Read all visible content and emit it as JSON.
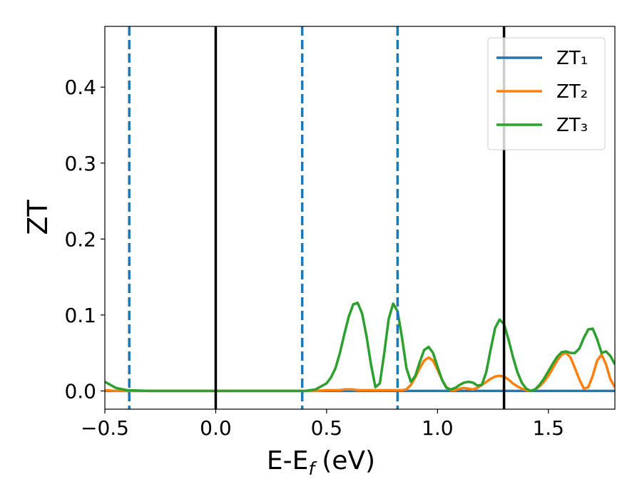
{
  "chart_data": {
    "type": "line",
    "xlabel": {
      "main": "E-E",
      "sub": "f",
      "unit": "(eV)"
    },
    "ylabel": "ZT",
    "x": [
      -0.5,
      -0.45,
      -0.4,
      -0.3,
      -0.2,
      -0.1,
      0,
      0.1,
      0.2,
      0.3,
      0.4,
      0.45,
      0.5,
      0.52,
      0.54,
      0.56,
      0.58,
      0.6,
      0.62,
      0.64,
      0.66,
      0.68,
      0.7,
      0.72,
      0.74,
      0.76,
      0.78,
      0.8,
      0.82,
      0.84,
      0.86,
      0.88,
      0.9,
      0.92,
      0.94,
      0.96,
      0.98,
      1.0,
      1.02,
      1.04,
      1.06,
      1.08,
      1.1,
      1.12,
      1.14,
      1.16,
      1.18,
      1.2,
      1.22,
      1.24,
      1.26,
      1.28,
      1.3,
      1.32,
      1.34,
      1.36,
      1.38,
      1.4,
      1.42,
      1.44,
      1.46,
      1.48,
      1.5,
      1.52,
      1.54,
      1.56,
      1.58,
      1.6,
      1.62,
      1.64,
      1.66,
      1.68,
      1.7,
      1.72,
      1.74,
      1.76,
      1.78,
      1.8
    ],
    "series": [
      {
        "name": "ZT₁",
        "color": "#1f77b4",
        "values": [
          0,
          0,
          0,
          0,
          0,
          0,
          0,
          0,
          0,
          0,
          0,
          0,
          0,
          0,
          0,
          0,
          0,
          0,
          0,
          0,
          0,
          0,
          0,
          0,
          0,
          0,
          0,
          0,
          0,
          0,
          0,
          0,
          0,
          0,
          0,
          0,
          0,
          0,
          0,
          0,
          0,
          0,
          0,
          0,
          0,
          0,
          0,
          0,
          0,
          0,
          0,
          0,
          0,
          0,
          0,
          0,
          0,
          0,
          0,
          0,
          0,
          0,
          0,
          0,
          0,
          0,
          0,
          0,
          0,
          0,
          0,
          0,
          0,
          0,
          0,
          0,
          0,
          0
        ]
      },
      {
        "name": "ZT₂",
        "color": "#ff7f0e",
        "values": [
          0.001,
          0,
          0,
          0,
          0,
          0,
          0,
          0,
          0,
          0,
          0,
          0,
          0.001,
          0.001,
          0.001,
          0.001,
          0.002,
          0.002,
          0.002,
          0.001,
          0.001,
          0.001,
          0.001,
          0.001,
          0.001,
          0.001,
          0.001,
          0.001,
          0.001,
          0.001,
          0.002,
          0.008,
          0.018,
          0.03,
          0.04,
          0.044,
          0.04,
          0.028,
          0.015,
          0.005,
          0.001,
          0.001,
          0.003,
          0.004,
          0.003,
          0.002,
          0.004,
          0.008,
          0.012,
          0.016,
          0.019,
          0.02,
          0.019,
          0.015,
          0.01,
          0.006,
          0.003,
          0.001,
          0,
          0.002,
          0.006,
          0.012,
          0.02,
          0.03,
          0.04,
          0.048,
          0.05,
          0.044,
          0.03,
          0.015,
          0.003,
          0.005,
          0.02,
          0.04,
          0.048,
          0.035,
          0.015,
          0.005
        ]
      },
      {
        "name": "ZT₃",
        "color": "#2ca02c",
        "values": [
          0.012,
          0.004,
          0.001,
          0,
          0,
          0,
          0,
          0,
          0,
          0,
          0,
          0.002,
          0.01,
          0.018,
          0.03,
          0.05,
          0.075,
          0.098,
          0.114,
          0.116,
          0.102,
          0.072,
          0.035,
          0.005,
          0.01,
          0.05,
          0.095,
          0.115,
          0.105,
          0.07,
          0.03,
          0.012,
          0.02,
          0.038,
          0.054,
          0.058,
          0.05,
          0.032,
          0.015,
          0.004,
          0.002,
          0.004,
          0.008,
          0.011,
          0.012,
          0.011,
          0.007,
          0.008,
          0.025,
          0.055,
          0.083,
          0.094,
          0.088,
          0.068,
          0.045,
          0.025,
          0.011,
          0.003,
          0,
          0.002,
          0.008,
          0.016,
          0.026,
          0.036,
          0.045,
          0.051,
          0.052,
          0.05,
          0.05,
          0.056,
          0.07,
          0.081,
          0.082,
          0.068,
          0.05,
          0.052,
          0.046,
          0.035
        ]
      }
    ],
    "vlines": [
      {
        "x": -0.39,
        "color": "#1f77b4",
        "style": "dashed"
      },
      {
        "x": 0,
        "color": "#000000",
        "style": "solid"
      },
      {
        "x": 0.39,
        "color": "#1f77b4",
        "style": "dashed"
      },
      {
        "x": 0.82,
        "color": "#1f77b4",
        "style": "dashed"
      },
      {
        "x": 1.3,
        "color": "#000000",
        "style": "solid"
      }
    ],
    "xlim": [
      -0.5,
      1.8
    ],
    "ylim": [
      -0.024,
      0.48
    ],
    "xticks": [
      {
        "value": -0.5,
        "label": "−0.5"
      },
      {
        "value": 0,
        "label": "0.0"
      },
      {
        "value": 0.5,
        "label": "0.5"
      },
      {
        "value": 1,
        "label": "1.0"
      },
      {
        "value": 1.5,
        "label": "1.5"
      }
    ],
    "yticks": [
      {
        "value": 0,
        "label": "0.0"
      },
      {
        "value": 0.1,
        "label": "0.1"
      },
      {
        "value": 0.2,
        "label": "0.2"
      },
      {
        "value": 0.3,
        "label": "0.3"
      },
      {
        "value": 0.4,
        "label": "0.4"
      }
    ],
    "grid": false,
    "legend": "upper right"
  }
}
